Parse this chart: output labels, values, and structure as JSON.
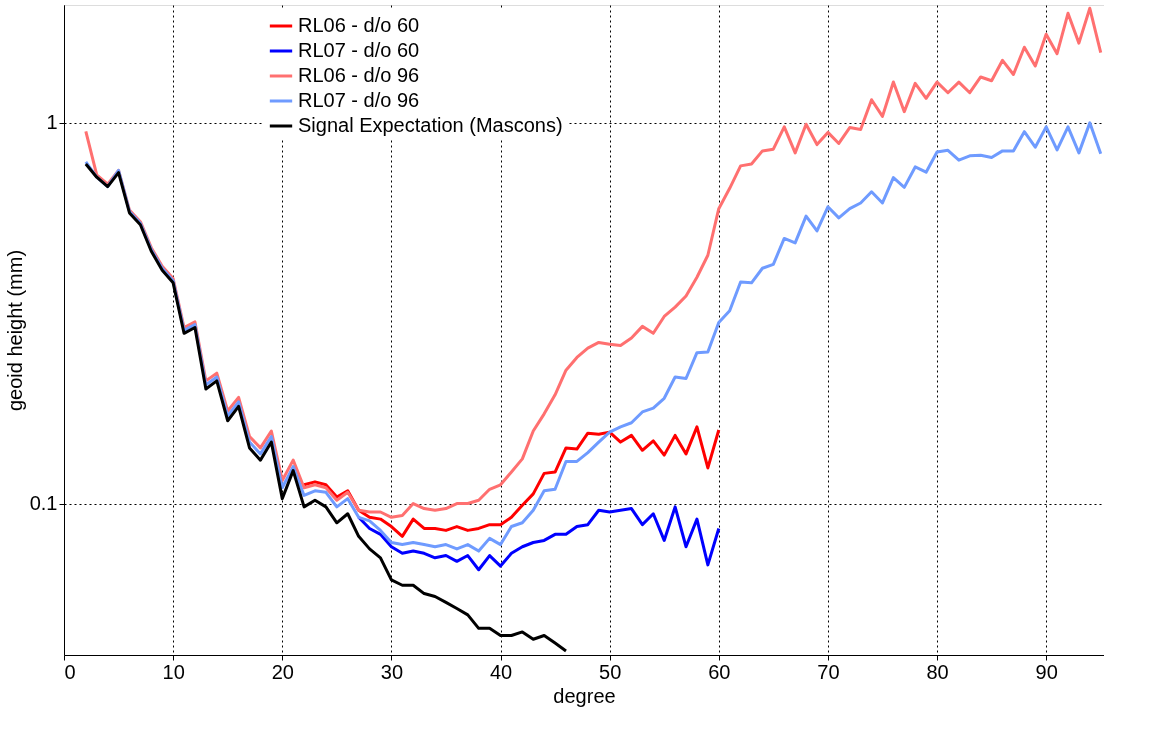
{
  "chart_data": {
    "type": "line",
    "xlabel": "degree",
    "ylabel": "geoid height (mm)",
    "xlim": [
      0,
      95.3
    ],
    "xticks": [
      0,
      10,
      20,
      30,
      40,
      50,
      60,
      70,
      80,
      90
    ],
    "ylim": [
      0.04,
      2.04
    ],
    "yticks": [
      0.1,
      1
    ],
    "log": "y",
    "grid": true,
    "legend": "top",
    "marker": "none",
    "line_style": "solid",
    "series": [
      {
        "name": "RL06 - d/o 60",
        "color": "#ff0000",
        "x": [
          22,
          23,
          24,
          25,
          26,
          27,
          28,
          29,
          30,
          31,
          32,
          33,
          34,
          35,
          36,
          37,
          38,
          39,
          40,
          41,
          42,
          43,
          44,
          45,
          46,
          47,
          48,
          49,
          50,
          51,
          52,
          53,
          54,
          55,
          56,
          57,
          58,
          59,
          60
        ],
        "values": [
          0.112,
          0.114,
          0.112,
          0.104,
          0.108,
          0.096,
          0.092,
          0.091,
          0.087,
          0.082,
          0.091,
          0.086,
          0.086,
          0.085,
          0.087,
          0.085,
          0.086,
          0.088,
          0.088,
          0.092,
          0.099,
          0.106,
          0.12,
          0.121,
          0.14,
          0.139,
          0.153,
          0.152,
          0.154,
          0.145,
          0.151,
          0.138,
          0.146,
          0.134,
          0.151,
          0.135,
          0.159,
          0.124,
          0.156
        ]
      },
      {
        "name": "RL07 - d/o 60",
        "color": "#0000ff",
        "x": [
          27,
          28,
          29,
          30,
          31,
          32,
          33,
          34,
          35,
          36,
          37,
          38,
          39,
          40,
          41,
          42,
          43,
          44,
          45,
          46,
          47,
          48,
          49,
          50,
          51,
          52,
          53,
          54,
          55,
          56,
          57,
          58,
          59,
          60
        ],
        "values": [
          0.092,
          0.086,
          0.083,
          0.077,
          0.074,
          0.075,
          0.074,
          0.072,
          0.073,
          0.0705,
          0.073,
          0.067,
          0.073,
          0.0685,
          0.074,
          0.077,
          0.079,
          0.08,
          0.083,
          0.083,
          0.087,
          0.088,
          0.096,
          0.095,
          0.096,
          0.097,
          0.088,
          0.094,
          0.08,
          0.098,
          0.077,
          0.091,
          0.069,
          0.086
        ]
      },
      {
        "name": "RL06 - d/o 96",
        "color": "#ff7070",
        "x": [
          2,
          3,
          4,
          5,
          6,
          7,
          8,
          9,
          10,
          11,
          12,
          13,
          14,
          15,
          16,
          17,
          18,
          19,
          20,
          21,
          22,
          23,
          24,
          25,
          26,
          27,
          28,
          29,
          30,
          31,
          32,
          33,
          34,
          35,
          36,
          37,
          38,
          39,
          40,
          41,
          42,
          43,
          44,
          45,
          46,
          47,
          48,
          49,
          50,
          51,
          52,
          53,
          54,
          55,
          56,
          57,
          58,
          59,
          60,
          61,
          62,
          63,
          64,
          65,
          66,
          67,
          68,
          69,
          70,
          71,
          72,
          73,
          74,
          75,
          76,
          77,
          78,
          79,
          80,
          81,
          82,
          83,
          84,
          85,
          86,
          87,
          88,
          89,
          90,
          91,
          92,
          93,
          94,
          95
        ],
        "values": [
          0.95,
          0.73,
          0.69,
          0.75,
          0.59,
          0.55,
          0.47,
          0.42,
          0.39,
          0.29,
          0.3,
          0.21,
          0.22,
          0.175,
          0.19,
          0.15,
          0.14,
          0.155,
          0.115,
          0.13,
          0.11,
          0.112,
          0.11,
          0.102,
          0.107,
          0.096,
          0.095,
          0.095,
          0.092,
          0.093,
          0.1,
          0.097,
          0.096,
          0.097,
          0.1,
          0.1,
          0.102,
          0.109,
          0.112,
          0.121,
          0.131,
          0.155,
          0.172,
          0.193,
          0.224,
          0.242,
          0.256,
          0.265,
          0.262,
          0.26,
          0.272,
          0.292,
          0.28,
          0.31,
          0.328,
          0.351,
          0.393,
          0.449,
          0.595,
          0.673,
          0.771,
          0.78,
          0.844,
          0.853,
          0.976,
          0.834,
          0.992,
          0.877,
          0.944,
          0.883,
          0.972,
          0.961,
          1.15,
          1.04,
          1.28,
          1.07,
          1.27,
          1.16,
          1.28,
          1.2,
          1.28,
          1.2,
          1.32,
          1.29,
          1.46,
          1.34,
          1.58,
          1.41,
          1.71,
          1.52,
          1.94,
          1.62,
          2.0,
          1.53
        ]
      },
      {
        "name": "RL07 - d/o 96",
        "color": "#6f9bff",
        "x": [
          2,
          3,
          4,
          5,
          6,
          7,
          8,
          9,
          10,
          11,
          12,
          13,
          14,
          15,
          16,
          17,
          18,
          19,
          20,
          21,
          22,
          23,
          24,
          25,
          26,
          27,
          28,
          29,
          30,
          31,
          32,
          33,
          34,
          35,
          36,
          37,
          38,
          39,
          40,
          41,
          42,
          43,
          44,
          45,
          46,
          47,
          48,
          49,
          50,
          51,
          52,
          53,
          54,
          55,
          56,
          57,
          58,
          59,
          60,
          61,
          62,
          63,
          64,
          65,
          66,
          67,
          68,
          69,
          70,
          71,
          72,
          73,
          74,
          75,
          76,
          77,
          78,
          79,
          80,
          81,
          82,
          83,
          84,
          85,
          86,
          87,
          88,
          89,
          90,
          91,
          92,
          93,
          94,
          95
        ],
        "values": [
          0.79,
          0.72,
          0.68,
          0.75,
          0.585,
          0.545,
          0.465,
          0.415,
          0.385,
          0.285,
          0.295,
          0.205,
          0.215,
          0.17,
          0.185,
          0.145,
          0.135,
          0.15,
          0.11,
          0.125,
          0.105,
          0.108,
          0.107,
          0.098,
          0.103,
          0.092,
          0.09,
          0.085,
          0.079,
          0.078,
          0.079,
          0.078,
          0.077,
          0.078,
          0.076,
          0.078,
          0.075,
          0.081,
          0.078,
          0.087,
          0.089,
          0.096,
          0.108,
          0.109,
          0.129,
          0.129,
          0.136,
          0.145,
          0.154,
          0.159,
          0.163,
          0.174,
          0.178,
          0.189,
          0.215,
          0.213,
          0.249,
          0.25,
          0.299,
          0.321,
          0.382,
          0.38,
          0.415,
          0.425,
          0.497,
          0.484,
          0.569,
          0.52,
          0.602,
          0.563,
          0.595,
          0.616,
          0.659,
          0.616,
          0.718,
          0.677,
          0.766,
          0.742,
          0.838,
          0.847,
          0.798,
          0.819,
          0.822,
          0.811,
          0.844,
          0.844,
          0.948,
          0.863,
          0.976,
          0.849,
          0.976,
          0.834,
          1.0,
          0.829
        ]
      },
      {
        "name": "Signal Expectation (Mascons)",
        "color": "#000000",
        "x": [
          2,
          3,
          4,
          5,
          6,
          7,
          8,
          9,
          10,
          11,
          12,
          13,
          14,
          15,
          16,
          17,
          18,
          19,
          20,
          21,
          22,
          23,
          24,
          25,
          26,
          27,
          28,
          29,
          30,
          31,
          32,
          33,
          34,
          35,
          36,
          37,
          38,
          39,
          40,
          41,
          42,
          43,
          44,
          45,
          46
        ],
        "values": [
          0.78,
          0.72,
          0.68,
          0.74,
          0.58,
          0.54,
          0.46,
          0.41,
          0.38,
          0.28,
          0.29,
          0.2,
          0.21,
          0.165,
          0.18,
          0.14,
          0.13,
          0.145,
          0.103,
          0.122,
          0.098,
          0.102,
          0.098,
          0.089,
          0.094,
          0.082,
          0.076,
          0.072,
          0.063,
          0.061,
          0.061,
          0.058,
          0.057,
          0.055,
          0.053,
          0.051,
          0.047,
          0.047,
          0.045,
          0.045,
          0.046,
          0.044,
          0.045,
          0.043,
          0.041
        ]
      }
    ]
  }
}
